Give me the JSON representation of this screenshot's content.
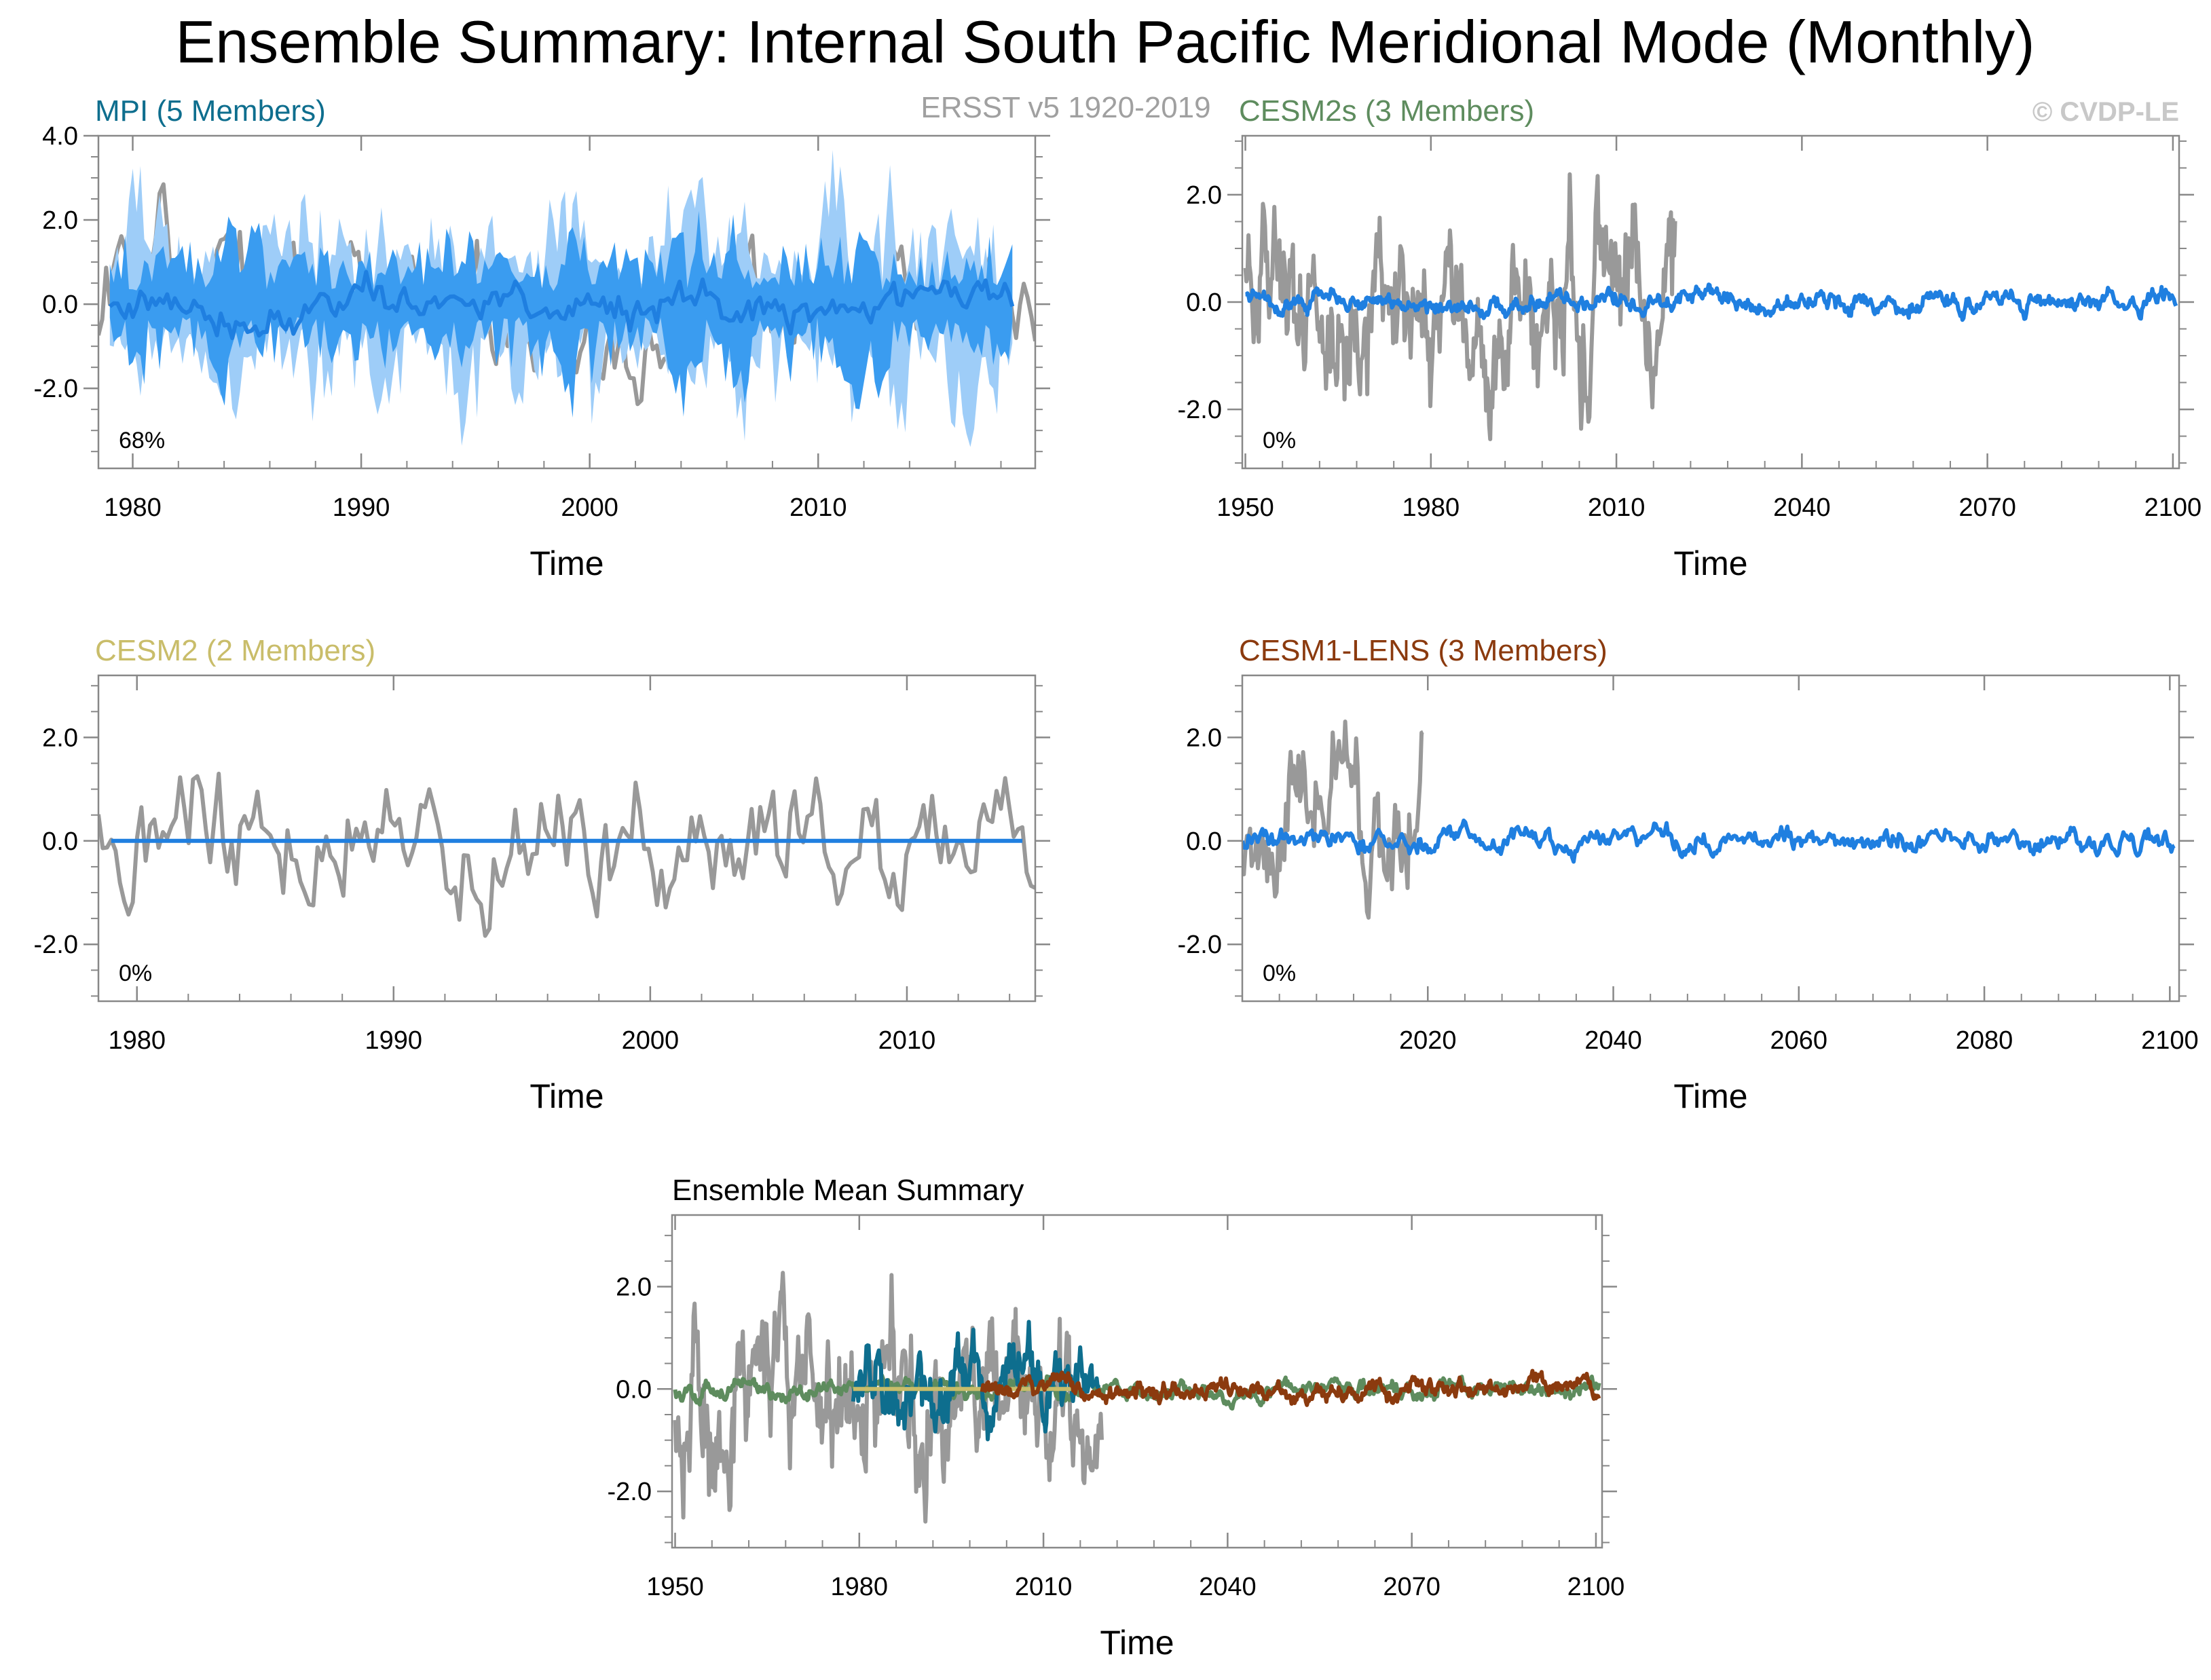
{
  "figure": {
    "title": "Ensemble Summary: Internal South Pacific Meridional Mode (Monthly)",
    "observations_label": "ERSST v5 1920-2019",
    "copyright": "© CVDP-LE"
  },
  "colors": {
    "obs": "#999999",
    "mpi": "#0e6e8e",
    "cesm2s": "#5e8c5e",
    "cesm2": "#c9bd6a",
    "cesm1lens": "#8b3a0e",
    "ensemble_line": "#1f7fe0",
    "spread_outer": "#9ecdf8",
    "spread_inner": "#3a9cf0"
  },
  "chart_data": [
    {
      "id": "mpi",
      "type": "line",
      "title": "MPI (5 Members)",
      "title_color": "#0e6e8e",
      "xlabel": "Time",
      "ylabel": "",
      "xlim": [
        1978.5,
        2019.5
      ],
      "ylim": [
        -3.9,
        4.0
      ],
      "xticks": [
        1980,
        1990,
        2000,
        2010
      ],
      "xtick_labels": [
        "1980",
        "1990",
        "2000",
        "2010"
      ],
      "yticks": [
        -2.0,
        0.0,
        2.0,
        4.0
      ],
      "ytick_labels": [
        "-2.0",
        "0.0",
        "2.0",
        "4.0"
      ],
      "annotation": "68%",
      "series": [
        {
          "name": "ERSST v5 (observed)",
          "color": "#999999",
          "x_range": [
            1978.5,
            2019.5
          ],
          "amplitude": 1.0,
          "seed": 11
        },
        {
          "name": "Ensemble spread (max-min)",
          "color": "#9ecdf8",
          "kind": "band",
          "x_range": [
            1979.0,
            2018.5
          ],
          "amplitude": 1.6,
          "seed": 12
        },
        {
          "name": "Ensemble spread (inner)",
          "color": "#3a9cf0",
          "kind": "band",
          "x_range": [
            1979.0,
            2018.5
          ],
          "amplitude": 1.0,
          "seed": 13
        },
        {
          "name": "Ensemble mean",
          "color": "#1f7fe0",
          "x_range": [
            1979.0,
            2018.5
          ],
          "amplitude": 0.35,
          "seed": 14
        }
      ]
    },
    {
      "id": "cesm2s",
      "type": "line",
      "title": "CESM2s (3 Members)",
      "title_color": "#5e8c5e",
      "xlabel": "Time",
      "ylabel": "",
      "xlim": [
        1949.5,
        2101.0
      ],
      "ylim": [
        -3.1,
        3.1
      ],
      "xticks": [
        1950,
        1980,
        2010,
        2040,
        2070,
        2100
      ],
      "xtick_labels": [
        "1950",
        "1980",
        "2010",
        "2040",
        "2070",
        "2100"
      ],
      "yticks": [
        -2.0,
        0.0,
        2.0
      ],
      "ytick_labels": [
        "-2.0",
        "0.0",
        "2.0"
      ],
      "annotation": "0%",
      "series": [
        {
          "name": "ERSST v5 (observed)",
          "color": "#999999",
          "x_range": [
            1950.0,
            2019.5
          ],
          "amplitude": 1.05,
          "seed": 21
        },
        {
          "name": "Ensemble mean",
          "color": "#1f7fe0",
          "x_range": [
            1950.0,
            2100.5
          ],
          "amplitude": 0.13,
          "seed": 22
        }
      ]
    },
    {
      "id": "cesm2",
      "type": "line",
      "title": "CESM2 (2 Members)",
      "title_color": "#c9bd6a",
      "xlabel": "Time",
      "ylabel": "",
      "xlim": [
        1978.5,
        2015.0
      ],
      "ylim": [
        -3.1,
        3.2
      ],
      "xticks": [
        1980,
        1990,
        2000,
        2010
      ],
      "xtick_labels": [
        "1980",
        "1990",
        "2000",
        "2010"
      ],
      "yticks": [
        -2.0,
        0.0,
        2.0
      ],
      "ytick_labels": [
        "-2.0",
        "0.0",
        "2.0"
      ],
      "annotation": "0%",
      "series": [
        {
          "name": "ERSST v5 (observed)",
          "color": "#999999",
          "x_range": [
            1978.5,
            2015.0
          ],
          "amplitude": 1.0,
          "seed": 31
        },
        {
          "name": "Ensemble mean",
          "color": "#1f7fe0",
          "x_range": [
            1979.0,
            2014.5
          ],
          "amplitude": 0.0,
          "seed": 32
        }
      ]
    },
    {
      "id": "cesm1lens",
      "type": "line",
      "title": "CESM1-LENS (3 Members)",
      "title_color": "#8b3a0e",
      "xlabel": "Time",
      "ylabel": "",
      "xlim": [
        2000.0,
        2101.0
      ],
      "ylim": [
        -3.1,
        3.2
      ],
      "xticks": [
        2020,
        2040,
        2060,
        2080,
        2100
      ],
      "xtick_labels": [
        "2020",
        "2040",
        "2060",
        "2080",
        "2100"
      ],
      "yticks": [
        -2.0,
        0.0,
        2.0
      ],
      "ytick_labels": [
        "-2.0",
        "0.0",
        "2.0"
      ],
      "annotation": "0%",
      "series": [
        {
          "name": "ERSST v5 (observed)",
          "color": "#999999",
          "x_range": [
            2000.0,
            2019.5
          ],
          "amplitude": 1.0,
          "seed": 41
        },
        {
          "name": "Ensemble mean",
          "color": "#1f7fe0",
          "x_range": [
            2000.0,
            2100.5
          ],
          "amplitude": 0.16,
          "seed": 42
        }
      ]
    },
    {
      "id": "summary",
      "type": "line",
      "title": "Ensemble Mean Summary",
      "title_color": "#000000",
      "xlabel": "Time",
      "ylabel": "",
      "xlim": [
        1949.5,
        2101.0
      ],
      "ylim": [
        -3.1,
        3.4
      ],
      "xticks": [
        1950,
        1980,
        2010,
        2040,
        2070,
        2100
      ],
      "xtick_labels": [
        "1950",
        "1980",
        "2010",
        "2040",
        "2070",
        "2100"
      ],
      "yticks": [
        -2.0,
        0.0,
        2.0
      ],
      "ytick_labels": [
        "-2.0",
        "0.0",
        "2.0"
      ],
      "annotation": "",
      "series": [
        {
          "name": "ERSST v5 (observed)",
          "color": "#999999",
          "x_range": [
            1950.0,
            2019.5
          ],
          "amplitude": 1.05,
          "seed": 51
        },
        {
          "name": "CESM2s",
          "color": "#5e8c5e",
          "x_range": [
            1950.0,
            2100.5
          ],
          "amplitude": 0.12,
          "seed": 52
        },
        {
          "name": "MPI",
          "color": "#0e6e8e",
          "x_range": [
            1979.0,
            2019.0
          ],
          "amplitude": 0.5,
          "seed": 53
        },
        {
          "name": "CESM2",
          "color": "#c9bd6a",
          "x_range": [
            1979.0,
            2014.5
          ],
          "amplitude": 0.0,
          "seed": 54
        },
        {
          "name": "CESM1-LENS",
          "color": "#8b3a0e",
          "x_range": [
            2000.0,
            2100.5
          ],
          "amplitude": 0.14,
          "seed": 55
        }
      ]
    }
  ]
}
